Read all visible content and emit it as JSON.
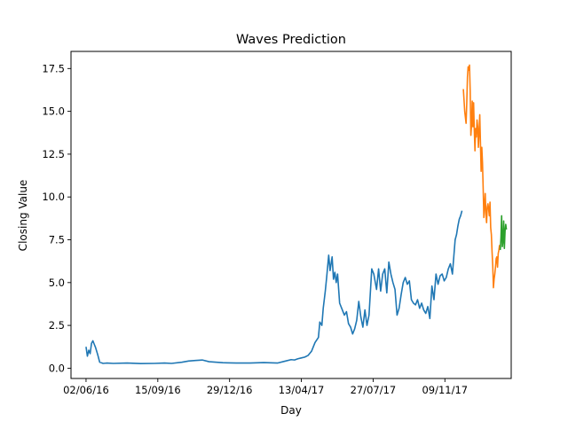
{
  "chart_data": {
    "type": "line",
    "title": "Waves Prediction",
    "xlabel": "Day",
    "ylabel": "Closing Value",
    "x_ticks": [
      "02/06/16",
      "15/09/16",
      "29/12/16",
      "13/04/17",
      "27/07/17",
      "09/11/17"
    ],
    "x_tick_days": [
      0,
      105,
      210,
      315,
      420,
      525
    ],
    "xlim": [
      -22,
      622
    ],
    "y_ticks": [
      "0.0",
      "2.5",
      "5.0",
      "7.5",
      "10.0",
      "12.5",
      "15.0",
      "17.5"
    ],
    "ylim": [
      -0.6,
      18.5
    ],
    "grid": false,
    "legend": "none",
    "series": [
      {
        "color": "#1f77b4",
        "x": [
          0,
          2,
          4,
          6,
          8,
          10,
          12,
          14,
          17,
          20,
          25,
          30,
          40,
          60,
          80,
          100,
          115,
          125,
          140,
          150,
          160,
          170,
          180,
          200,
          220,
          240,
          260,
          280,
          290,
          300,
          305,
          310,
          315,
          320,
          325,
          330,
          335,
          340,
          342,
          345,
          347,
          350,
          352,
          355,
          357,
          360,
          362,
          364,
          366,
          368,
          371,
          374,
          378,
          381,
          384,
          387,
          390,
          393,
          396,
          399,
          402,
          405,
          408,
          411,
          414,
          418,
          421,
          425,
          428,
          431,
          434,
          437,
          440,
          443,
          446,
          449,
          452,
          455,
          458,
          461,
          464,
          467,
          470,
          473,
          476,
          479,
          482,
          485,
          488,
          491,
          494,
          497,
          500,
          503,
          506,
          509,
          512,
          515,
          518,
          521,
          524,
          527,
          530,
          533,
          536,
          538,
          540,
          542,
          544,
          546,
          548,
          550
        ],
        "y": [
          1.25,
          0.7,
          1.05,
          0.85,
          1.45,
          1.6,
          1.4,
          1.2,
          0.8,
          0.35,
          0.28,
          0.3,
          0.28,
          0.3,
          0.27,
          0.28,
          0.3,
          0.28,
          0.35,
          0.42,
          0.45,
          0.48,
          0.38,
          0.32,
          0.3,
          0.3,
          0.33,
          0.3,
          0.4,
          0.5,
          0.48,
          0.55,
          0.6,
          0.65,
          0.75,
          1.0,
          1.5,
          1.8,
          2.7,
          2.5,
          3.5,
          4.5,
          5.3,
          6.6,
          5.7,
          6.5,
          5.2,
          5.6,
          5.0,
          5.5,
          3.8,
          3.5,
          3.1,
          3.3,
          2.6,
          2.4,
          2.0,
          2.3,
          2.8,
          3.9,
          3.0,
          2.4,
          3.4,
          2.5,
          3.1,
          5.8,
          5.5,
          4.6,
          5.8,
          4.5,
          5.5,
          5.8,
          4.4,
          6.2,
          5.5,
          5.0,
          4.6,
          3.1,
          3.5,
          4.3,
          5.0,
          5.3,
          4.9,
          5.1,
          4.0,
          3.8,
          3.7,
          4.0,
          3.5,
          3.8,
          3.4,
          3.2,
          3.6,
          2.9,
          4.8,
          4.0,
          5.5,
          4.9,
          5.4,
          5.5,
          5.1,
          5.3,
          5.8,
          6.1,
          5.5,
          6.5,
          7.5,
          7.8,
          8.3,
          8.7,
          8.9,
          9.2
        ]
      },
      {
        "color": "#ff7f0e",
        "x": [
          552,
          554,
          556,
          557,
          558,
          559,
          560,
          561,
          562,
          563,
          564,
          565,
          566,
          567,
          568,
          569,
          570,
          571,
          572,
          573,
          574,
          575,
          576,
          577,
          578,
          579,
          580,
          581,
          582,
          583,
          584,
          585,
          586,
          587,
          588,
          589,
          590,
          591,
          592,
          593,
          594,
          595,
          596,
          597,
          598,
          599,
          600,
          601,
          602,
          603,
          604,
          605
        ],
        "y": [
          16.3,
          15.0,
          14.3,
          15.5,
          17.0,
          17.6,
          17.4,
          17.7,
          16.2,
          13.6,
          14.2,
          15.6,
          14.1,
          15.5,
          13.9,
          12.7,
          14.0,
          13.5,
          14.5,
          14.1,
          12.9,
          13.8,
          14.8,
          13.2,
          11.5,
          12.9,
          12.0,
          10.5,
          8.8,
          9.5,
          10.2,
          9.0,
          8.5,
          9.4,
          9.6,
          9.3,
          8.9,
          9.7,
          8.2,
          7.8,
          6.8,
          6.0,
          4.7,
          5.2,
          5.5,
          5.9,
          6.4,
          6.5,
          5.9,
          6.7,
          6.9,
          7.2
        ]
      },
      {
        "color": "#2ca02c",
        "x": [
          606,
          607,
          608,
          609,
          610,
          611,
          612,
          613,
          614,
          615
        ],
        "y": [
          6.9,
          7.6,
          8.9,
          7.1,
          7.4,
          8.6,
          7.0,
          8.0,
          8.4,
          8.1
        ]
      }
    ]
  }
}
